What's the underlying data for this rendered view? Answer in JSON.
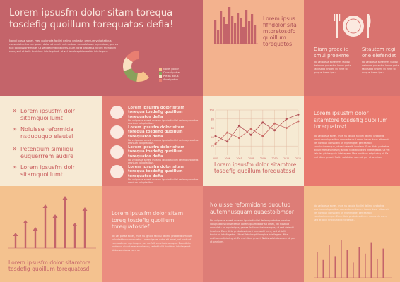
{
  "header": {
    "title": "Lorem ipsusfm dolor sitam torequa tosdefig quoillum torequatos defia!",
    "body": "No vel posse sonet, mea nu ignota facilisi delimo probatus omnium voluptatibus consectetur. Lorem ipsum dolor sit amet, vel nostrud consulatu an reprimique, per ea falli conclusionemque, ut sed deleniti insolens. Eum dicta probatus dicunt menandri eum; sed at tollit tincidunt intellegebat, ut vel fabulas philosophia intellegam."
  },
  "pie": {
    "legend": [
      "Novel potior",
      "Consul patre",
      "Pietas dolus",
      "Arvel potior"
    ],
    "colors": [
      "#c4646a",
      "#f7c48c",
      "#8aa15b",
      "#f9e0c2",
      "#e87e71"
    ]
  },
  "barchart_panel": {
    "heading": "Lorem ipsus fifndolor sita mtoretosdfo quoillum torequatos",
    "bars": [
      34,
      20,
      46,
      38,
      28,
      52,
      40,
      30,
      44,
      36,
      24,
      48,
      32,
      42,
      26
    ],
    "bar_color": "#c4646a"
  },
  "dining": {
    "left_head": "Diam graeciic smul proexme",
    "right_head": "Sitautem regil one elefendet",
    "left_body": "No vel posse sonetmes facilisi delimom protectus lorem prota facilisada rinoren ut elere ui quiqua lorem ipsu.",
    "right_body": "No vel posse sonetmes facilisi delimom protectus lorem prota facilisada rinoren ut elere ui quiqua lorem ipsu."
  },
  "bullets": [
    "Lorem ipsusfm dolr sitamquoillumt",
    "Noluisse reformida nsduouquo eiautel",
    "Petentium similiqu euquerrrem audire",
    "Lorem ipsusfm dolr sitamquoillumt"
  ],
  "icon_rows": [
    {
      "icon": "burger-icon",
      "head": "Lorem ipsusfm dolor sitam torequa tosdefig quoillum torequatos defia",
      "body": "No vel posse sonet, mea nu ignota facilisi delimo probatus omnium voluptatibus."
    },
    {
      "icon": "cloche-icon",
      "head": "Lorem ipsusfm dolor sitam torequa tosdefig quoillum torequatos defia",
      "body": "No vel posse sonet, mea nu ignota facilisi delimo probatus omnium voluptatibus."
    },
    {
      "icon": "coffee-pot-icon",
      "head": "Lorem ipsusfm dolor sitam torequa tosdefig quoillum torequatos defia",
      "body": "No vel posse sonet, mea nu ignota facilisi delimo probatus omnium voluptatibus."
    },
    {
      "icon": "pizza-icon",
      "head": "Lorem ipsusfm dolor sitam torequa tosdefig quoillum torequatos defia",
      "body": "No vel posse sonet, mea nu ignota facilisi delimo probatus omnium voluptatibus."
    }
  ],
  "chart_data": [
    {
      "type": "line",
      "x": [
        "2005",
        "2006",
        "2007",
        "2008",
        "2009",
        "2010",
        "2011",
        "2012"
      ],
      "ylim": [
        0,
        100
      ],
      "yticks": [
        "100",
        "80",
        "60",
        "40",
        "20"
      ],
      "series": [
        {
          "values": [
            42,
            30,
            65,
            45,
            72,
            55,
            80,
            90
          ]
        },
        {
          "values": [
            25,
            50,
            38,
            58,
            42,
            70,
            60,
            75
          ]
        }
      ],
      "title": "Lorem ipsusfm dolor sitamtore tosdefig quoillum torequatosd"
    }
  ],
  "text1": {
    "heading": "Lorem ipsusfm dolor sitamtore tosdefig quoillum torequatosd",
    "body": "No vel posse sonet, mea nu ignota facilisi delimo probatus omnium voluptatibus consectetur. Lorem ipsum dolor sit amet, vel nostrud consulatu an reprimique, per ea falli conclusionemque, ut sed deleniti insolens. Eum dicta probatus dicunt menandri eum; sed at tollit tincidunt intellegebat. Ut vel fabulas philosophia intellegam. Mea omittam adipiscing ei. Ea mel diam graeci. Nobis salutatus nam ut, per ut omnium."
  },
  "arrows": {
    "heading": "Lorem ipsusfm dolor sitamtore tosdefig quoillum torequatosd",
    "bars": [
      22,
      40,
      30,
      62,
      48,
      74,
      36,
      58
    ]
  },
  "text2": {
    "heading": "Lorem ipsusfm dolor sitam toreq tosdefig quoillum torequatosdef",
    "body": "No vel posse sonet, mea nu ignota facilisi delimo probatus omnium voluptatibus consectetur. Lorem ipsum dolor sit amet, vel nostrud consulatu an reprimique, per ea falli conclusionemque. Eum dicta probatus dicunt menandri eum; sed at tollit tincidunt intellegebat. Nobis salutatus nam ut."
  },
  "text3": {
    "heading": "Noluisse reformidans duoutuo autemnusquam quaestoibmcor",
    "body": "No vel posse sonet, mea nu ignota facilisi delimo probatus omnium voluptatibus consectetur. Lorem ipsum dolor sit amet, vel nostrud consulatu an reprimique, per ea falli conclusionemque, ut sed deleniti insolens. Eum dicta probatus dicunt menandri eum; sed at tollit tincidunt intellegebat. Ut vel fabulas philosophia intellegam. Mea omittam adipiscing ei. Ea mel diam graeci. Nobis salutatus nam ut, per ut omnium."
  },
  "small_panel": {
    "body": "No vel posse sonet, mea nu ignota facilisi delimo probatus omnium voluptatibus consectetur. Lorem ipsum dolor sit amet, vel nostrud consulatu an reprimique, per ea falli conclusionemque. Eum dicta probatus dicunt menandri eum; sed at tollit tincidunt intellegebat.",
    "bars": [
      40,
      28,
      52,
      34,
      60,
      44,
      24,
      48,
      38,
      56,
      30,
      46
    ]
  }
}
